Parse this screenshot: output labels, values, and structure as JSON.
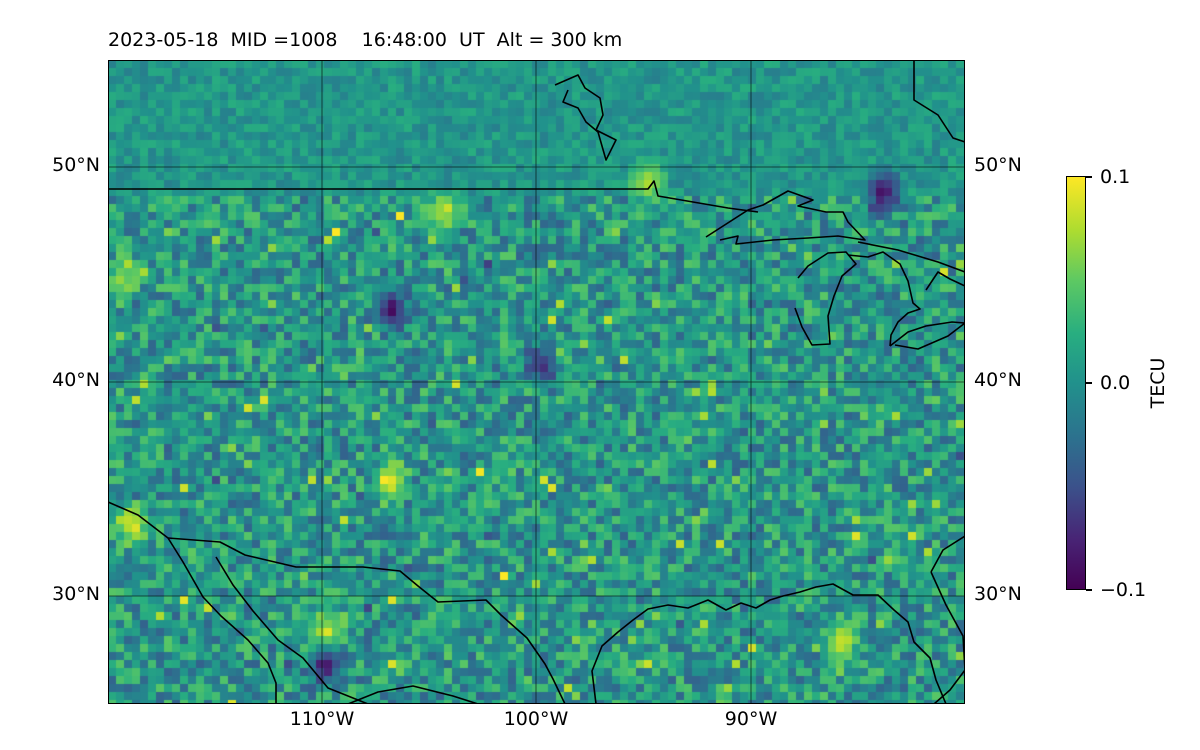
{
  "header": {
    "date": "2023-05-18",
    "mid": "MID =1008",
    "time": "16:48:00  UT",
    "alt": "Alt = 300 km"
  },
  "map": {
    "projection": "equirectangular",
    "lon_range": [
      -120,
      -80
    ],
    "lat_range": [
      25,
      55
    ],
    "gridlines": true,
    "colormap": "viridis",
    "lat_labels": [
      "50°N",
      "40°N",
      "30°N"
    ],
    "lon_labels": [
      "110°W",
      "100°W",
      "90°W"
    ],
    "hotspots_tecu": [
      {
        "lon": -107,
        "lat": 35.5,
        "value": 0.1
      },
      {
        "lon": -110,
        "lat": 28.5,
        "value": 0.1
      },
      {
        "lon": -119,
        "lat": 33.5,
        "value": 0.1
      },
      {
        "lon": -104.5,
        "lat": 48,
        "value": 0.08
      },
      {
        "lon": -86,
        "lat": 28,
        "value": 0.09
      },
      {
        "lon": -95,
        "lat": 49.5,
        "value": 0.08
      },
      {
        "lon": -119.5,
        "lat": 45,
        "value": 0.07
      },
      {
        "lon": -107,
        "lat": 43.5,
        "value": -0.1
      },
      {
        "lon": -84,
        "lat": 49,
        "value": -0.1
      },
      {
        "lon": -110,
        "lat": 27,
        "value": -0.09
      },
      {
        "lon": -100,
        "lat": 41,
        "value": -0.08
      }
    ]
  },
  "colorbar": {
    "label": "TECU",
    "min": -0.1,
    "max": 0.1,
    "ticks": [
      "0.1",
      "0.0",
      "−0.1"
    ],
    "colors": [
      "#440154",
      "#482475",
      "#3b528b",
      "#2c728e",
      "#21918c",
      "#28ae80",
      "#5ec962",
      "#addc30",
      "#fde725"
    ]
  }
}
